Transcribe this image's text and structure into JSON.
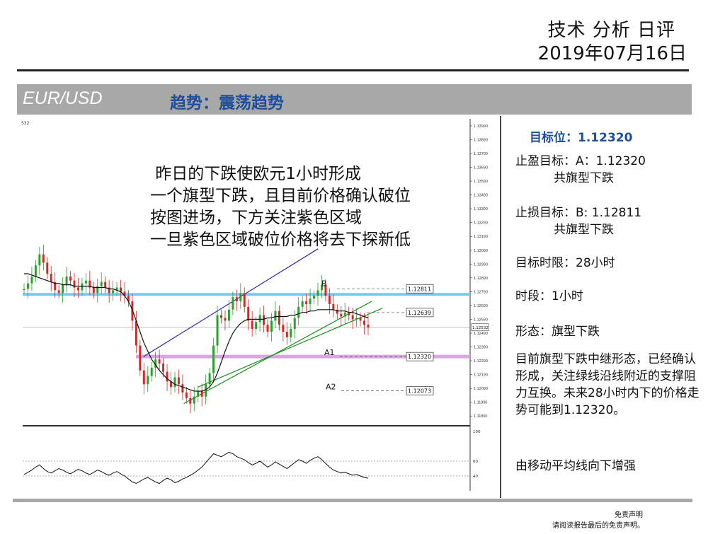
{
  "header": {
    "title": "技术 分析 日评",
    "date": "2019年07月16日"
  },
  "banner": {
    "pair": "EUR/USD",
    "trend": "趋势：震荡趋势"
  },
  "chart_note": {
    "lines": [
      " 昨日的下跌使欧元1小时形成",
      "一个旗型下跌，且目前价格确认破位",
      "按图进场，下方关注紫色区域",
      "一旦紫色区域破位价格将去下探新低"
    ]
  },
  "sidebar": {
    "target": "目标位：1.12320",
    "tp_line1": "止盈目标：A：1.12320",
    "tp_line2": "共旗型下跌",
    "sl_line1": "止损目标：B: 1.12811",
    "sl_line2": "共旗型下跌",
    "time_limit": "目标时限：28小时",
    "timeframe": "时段：1小时",
    "pattern": "形态：旗型下跌",
    "paragraph": "目前旗型下跌中继形态，已经确认形成，关注绿线沿线附近的支撑阻力互换。未来28小时内下的价格走势可能到1.12320。",
    "ma_note": "由移动平均线向下增强"
  },
  "footer": {
    "disclaimer_title": "免责声明",
    "disclaimer_text": "请阅读报告最后的免责声明。"
  },
  "colors": {
    "accent_blue": "#1f4e9a",
    "band_gray": "#a8a8a8",
    "support_cyan": "#7cc8ee",
    "zone_purple": "#d9a6e0",
    "channel_blue": "#2a2aa8",
    "trend_green": "#1a8c1a"
  },
  "chart_data": {
    "type": "candlestick",
    "timeframe": "1H",
    "ylim": [
      1.1185,
      1.14
    ],
    "y_ticks": [
      "1.13990",
      "1.13890",
      "1.13790",
      "1.13690",
      "1.13590",
      "1.13490",
      "1.13390",
      "1.13290",
      "1.13190",
      "1.13090",
      "1.12990",
      "1.12890",
      "1.12790",
      "1.12690",
      "1.12590",
      "1.12490",
      "1.12390",
      "1.12290",
      "1.12190",
      "1.12090",
      "1.11990",
      "1.11890"
    ],
    "current_price": "1.12532",
    "top_left_label": "S32",
    "levels": [
      {
        "name": "B",
        "value": 1.12811,
        "label": "1.12811"
      },
      {
        "name": "",
        "value": 1.12639,
        "label": "1.12639"
      },
      {
        "name": "A1",
        "value": 1.1232,
        "label": "1.12320"
      },
      {
        "name": "A2",
        "value": 1.12073,
        "label": "1.12073"
      }
    ],
    "support_line": 1.1277,
    "purple_zone": 1.1232,
    "closes": [
      1.1281,
      1.1285,
      1.129,
      1.1298,
      1.1306,
      1.13,
      1.1292,
      1.1286,
      1.128,
      1.1278,
      1.1284,
      1.129,
      1.1287,
      1.1282,
      1.128,
      1.1285,
      1.1287,
      1.1282,
      1.1278,
      1.1283,
      1.1286,
      1.1282,
      1.1278,
      1.128,
      1.1282,
      1.1279,
      1.1276,
      1.1272,
      1.1258,
      1.124,
      1.1222,
      1.1212,
      1.1218,
      1.1224,
      1.123,
      1.1227,
      1.1221,
      1.1214,
      1.121,
      1.1217,
      1.1212,
      1.1206,
      1.1202,
      1.1198,
      1.1203,
      1.1207,
      1.1203,
      1.1212,
      1.122,
      1.124,
      1.1262,
      1.126,
      1.1258,
      1.1266,
      1.1275,
      1.1272,
      1.1278,
      1.1268,
      1.1258,
      1.1252,
      1.1257,
      1.1262,
      1.1255,
      1.125,
      1.1258,
      1.1265,
      1.1255,
      1.125,
      1.1246,
      1.1252,
      1.126,
      1.1268,
      1.1272,
      1.127,
      1.1274,
      1.1276,
      1.128,
      1.1284,
      1.1276,
      1.127,
      1.1266,
      1.1263,
      1.1261,
      1.1264,
      1.1262,
      1.1259,
      1.126,
      1.1258,
      1.1255,
      1.1253
    ],
    "sma": [
      1.1292,
      1.1292,
      1.1291,
      1.129,
      1.1289,
      1.1288,
      1.1287,
      1.1286,
      1.1285,
      1.1285,
      1.1284,
      1.1284,
      1.1284,
      1.1283,
      1.1283,
      1.1283,
      1.1283,
      1.1283,
      1.1282,
      1.1282,
      1.1282,
      1.1282,
      1.1281,
      1.1281,
      1.128,
      1.1279,
      1.1276,
      1.1272,
      1.1266,
      1.1258,
      1.125,
      1.1242,
      1.1236,
      1.123,
      1.1226,
      1.1222,
      1.1219,
      1.1216,
      1.1214,
      1.1212,
      1.1211,
      1.121,
      1.1209,
      1.1208,
      1.1207,
      1.1207,
      1.1207,
      1.1208,
      1.121,
      1.1214,
      1.122,
      1.1228,
      1.1236,
      1.1243,
      1.1249,
      1.1253,
      1.1256,
      1.1258,
      1.1259,
      1.1259,
      1.1259,
      1.1259,
      1.1259,
      1.126,
      1.126,
      1.1261,
      1.1261,
      1.1261,
      1.1261,
      1.1262,
      1.1262,
      1.1263,
      1.1264,
      1.1264,
      1.1265,
      1.1265,
      1.1266,
      1.1266,
      1.1266,
      1.1266,
      1.1266,
      1.1265,
      1.1265,
      1.1265,
      1.1264,
      1.1264,
      1.1263,
      1.1262,
      1.1261,
      1.126
    ],
    "channel_upper": [
      [
        1.1232,
        0.27
      ],
      [
        1.131,
        0.66
      ]
    ],
    "channel_lower": [
      [
        1.1198,
        0.36
      ],
      [
        1.1272,
        0.78
      ]
    ],
    "indicator": {
      "levels": [
        100,
        60,
        40
      ],
      "values": [
        42,
        45,
        48,
        52,
        55,
        50,
        46,
        44,
        47,
        50,
        48,
        45,
        43,
        46,
        49,
        47,
        44,
        42,
        45,
        48,
        46,
        43,
        41,
        44,
        46,
        43,
        40,
        36,
        32,
        30,
        33,
        36,
        38,
        35,
        32,
        30,
        34,
        37,
        35,
        31,
        33,
        36,
        38,
        41,
        44,
        48,
        52,
        58,
        64,
        70,
        68,
        66,
        69,
        72,
        70,
        66,
        64,
        62,
        58,
        55,
        57,
        60,
        56,
        52,
        55,
        59,
        56,
        53,
        50,
        54,
        58,
        62,
        60,
        57,
        61,
        64,
        66,
        62,
        57,
        52,
        48,
        46,
        44,
        45,
        43,
        41,
        42,
        40,
        38,
        37
      ]
    }
  }
}
